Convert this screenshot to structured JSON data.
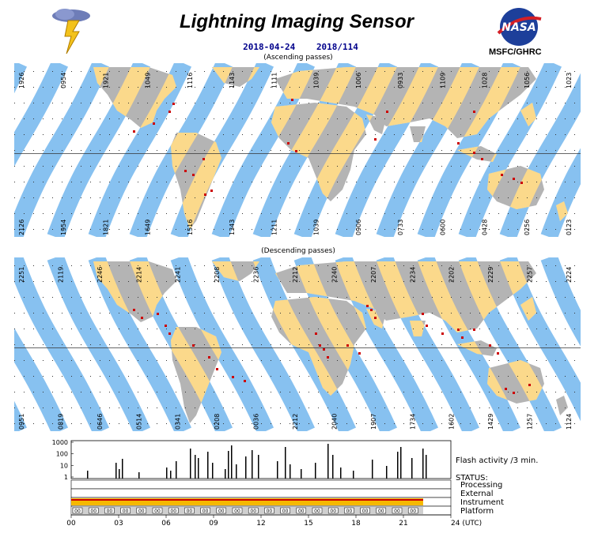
{
  "header": {
    "title": "Lightning Imaging Sensor",
    "date": "2018-04-24",
    "day_of_year": "2018/114",
    "org": "MSFC/GHRC",
    "nasa_logo_text": "NASA"
  },
  "ascending": {
    "label": "(Ascending passes)",
    "top_times": [
      "1926",
      "0954",
      "1921",
      "1049",
      "1116",
      "1143",
      "1111",
      "1039",
      "1006",
      "0933",
      "1109",
      "1028",
      "1056",
      "1023"
    ],
    "bottom_times": [
      "2126",
      "1954",
      "1821",
      "1649",
      "1516",
      "1343",
      "1211",
      "1039",
      "0906",
      "0733",
      "0600",
      "0428",
      "0256",
      "0123"
    ]
  },
  "descending": {
    "label": "(Descending passes)",
    "top_times": [
      "2251",
      "2119",
      "2246",
      "2214",
      "2241",
      "2208",
      "2236",
      "2212",
      "2240",
      "2207",
      "2234",
      "2202",
      "2229",
      "2257",
      "2224"
    ],
    "bottom_times": [
      "0951",
      "0819",
      "0646",
      "0514",
      "0341",
      "0208",
      "0036",
      "2212",
      "2040",
      "1907",
      "1734",
      "1602",
      "1429",
      "1257",
      "1124"
    ]
  },
  "status": {
    "flash_label": "Flash activity /3 min.",
    "status_label": "STATUS:",
    "rows": [
      "Processing",
      "External",
      "Instrument",
      "Platform"
    ],
    "y_ticks": [
      "1000",
      "100",
      "10",
      "1"
    ],
    "x_ticks": [
      "00",
      "03",
      "06",
      "09",
      "12",
      "15",
      "18",
      "21",
      "24 (UTC)"
    ],
    "platform_boxes": [
      "00",
      "00",
      "00",
      "00",
      "00",
      "00",
      "00",
      "00",
      "00",
      "00",
      "00",
      "00",
      "00",
      "00",
      "00",
      "00",
      "00",
      "00",
      "00",
      "00",
      "00",
      "00"
    ]
  },
  "colors": {
    "ocean_white": "#ffffff",
    "swath_blue": "#87c1f0",
    "land_gray": "#b4b4b4",
    "land_swath": "#fbd98b",
    "flash_red": "#cc0000",
    "title_blue": "#00008b"
  }
}
